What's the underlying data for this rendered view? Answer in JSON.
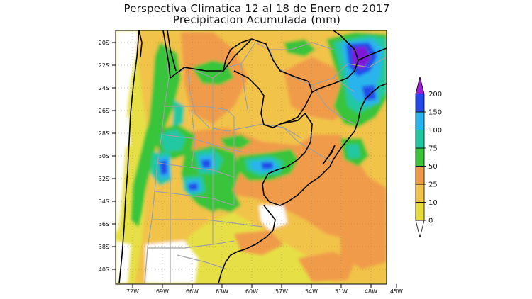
{
  "title": {
    "line1": "Perspectiva Climatica 12 al 18 de Enero de 2017",
    "line2": "Precipitacion Acumulada (mm)"
  },
  "lat_labels": [
    "20S",
    "22S",
    "24S",
    "26S",
    "28S",
    "30S",
    "32S",
    "34S",
    "36S",
    "38S",
    "40S"
  ],
  "lon_labels": [
    "72W",
    "69W",
    "66W",
    "63W",
    "60W",
    "57W",
    "54W",
    "51W",
    "48W",
    "45W"
  ],
  "colorbar": {
    "levels": [
      "0",
      "10",
      "25",
      "50",
      "75",
      "100",
      "150",
      "200"
    ],
    "colors": [
      "#e8dc3c",
      "#f2c34a",
      "#f09b48",
      "#39c43a",
      "#20c8a2",
      "#2ab4ee",
      "#2048e8",
      "#8018d8"
    ],
    "under_color": "#ffffff",
    "over_color": "#9a20d0"
  },
  "colors": {
    "ocean_land_base": "#e6e046",
    "no_rain": "#ffffff",
    "borders": "#a0a0a0",
    "coast": "#000000"
  }
}
